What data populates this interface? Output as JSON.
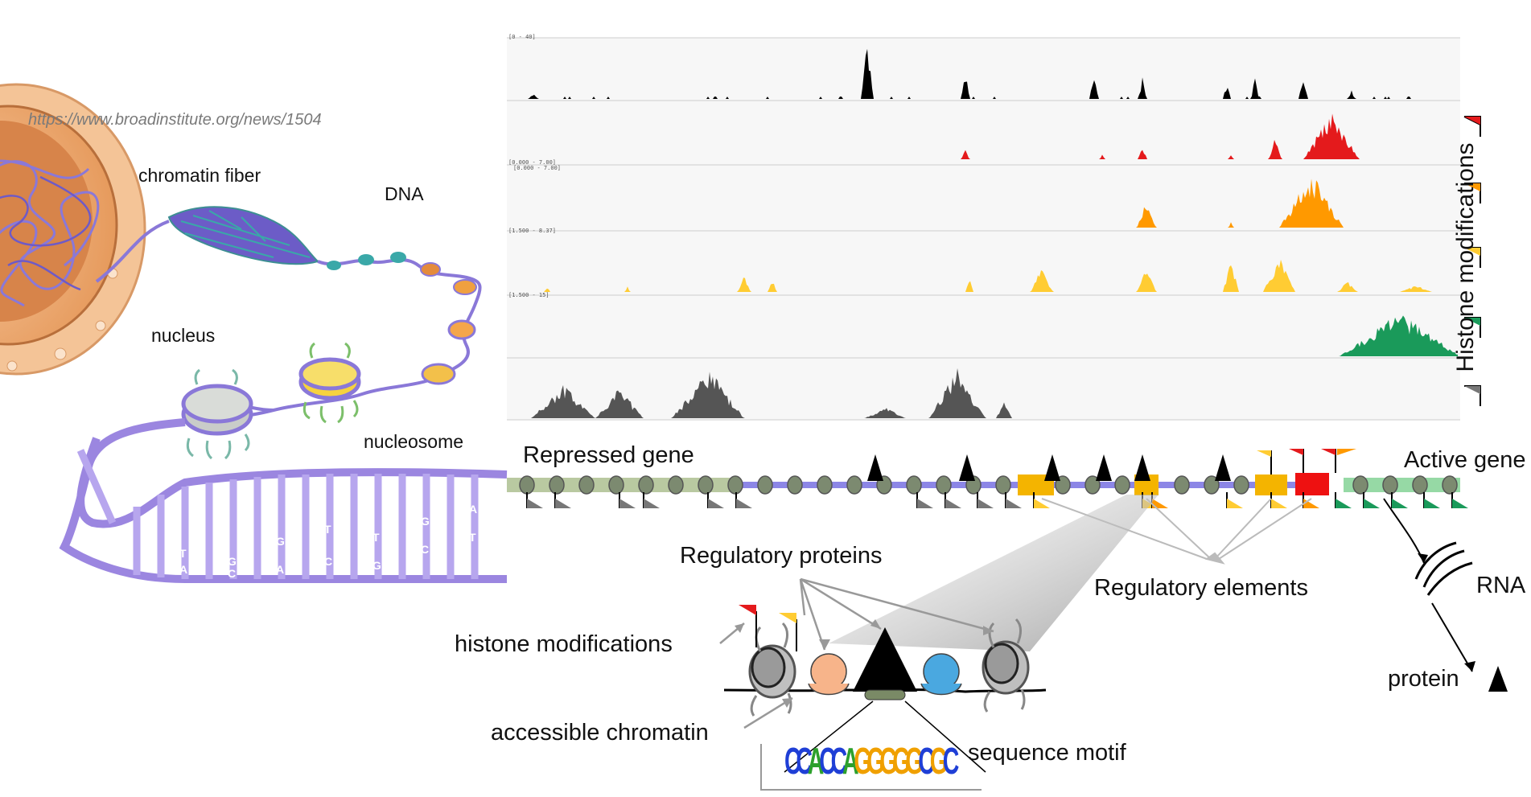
{
  "source_url": "https://www.broadinstitute.org/news/1504",
  "cell_labels": {
    "chromatin_fiber": "chromatin fiber",
    "dna": "DNA",
    "nucleus": "nucleus",
    "nucleosome": "nucleosome"
  },
  "tracks": {
    "side_label": "Histone modifications",
    "colors": [
      "#000000",
      "#e41a1c",
      "#ff9900",
      "#ffcc33",
      "#1a9a5a",
      "#555555"
    ],
    "range_labels": [
      "[0 - 40]",
      "[0.000 - 7.00]",
      "[0.000 - 7.00]",
      "[1.500 - 8.37]",
      "[1.500 - 15]",
      ""
    ]
  },
  "gene_labels": {
    "repressed": "Repressed gene",
    "active": "Active gene"
  },
  "regulation": {
    "regulatory_proteins": "Regulatory proteins",
    "regulatory_elements": "Regulatory elements",
    "rna": "RNA",
    "protein": "protein",
    "histone_modifications": "histone modifications",
    "accessible_chromatin": "accessible chromatin",
    "sequence_motif": "sequence motif"
  },
  "motif_letters": "CCACCAGGGGGCGC",
  "dna_bases": [
    "A",
    "T",
    "G",
    "C",
    "T",
    "G",
    "C",
    "T",
    "A",
    "G",
    "G",
    "C",
    "A",
    "T"
  ]
}
